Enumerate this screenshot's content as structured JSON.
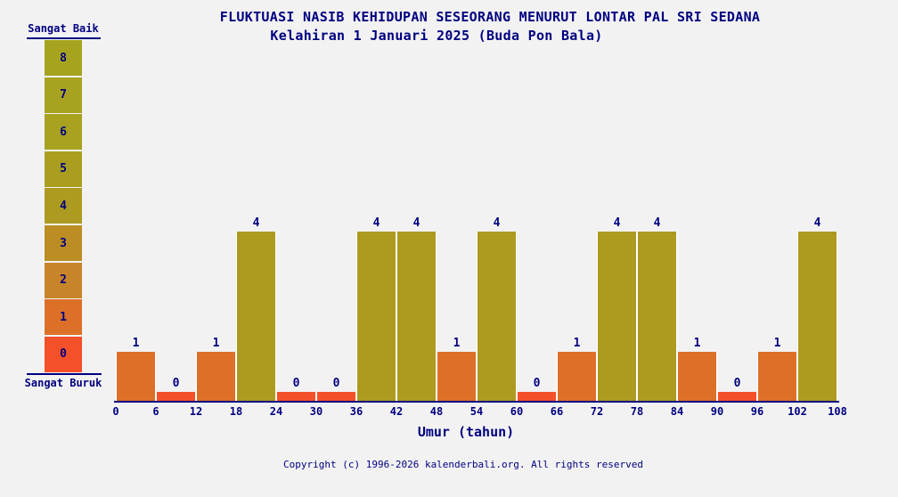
{
  "page": {
    "title": "FLUKTUASI NASIB KEHIDUPAN SESEORANG MENURUT LONTAR PAL SRI SEDANA",
    "subtitle": "Kelahiran 1 Januari 2025 (Buda Pon Bala)",
    "copyright": "Copyright (c) 1996-2026 kalenderbali.org. All rights reserved",
    "background_color": "#f2f2f2",
    "text_color": "#000080"
  },
  "legend": {
    "top_label": "Sangat Baik",
    "bottom_label": "Sangat Buruk",
    "levels": [
      8,
      7,
      6,
      5,
      4,
      3,
      2,
      1,
      0
    ],
    "colors": {
      "8": "#a6a41f",
      "7": "#a7a320",
      "6": "#a8a220",
      "5": "#a99e20",
      "4": "#ad9a20",
      "3": "#bb8d23",
      "2": "#c88428",
      "1": "#dd7028",
      "0": "#f4502a"
    }
  },
  "chart_data": {
    "type": "bar",
    "title": "FLUKTUASI NASIB KEHIDUPAN SESEORANG MENURUT LONTAR PAL SRI SEDANA",
    "subtitle": "Kelahiran 1 Januari 2025 (Buda Pon Bala)",
    "xlabel": "Umur (tahun)",
    "ylabel": "",
    "ylim": [
      0,
      8
    ],
    "scale_meaning": {
      "0": "Sangat Buruk",
      "8": "Sangat Baik"
    },
    "x_ticks": [
      0,
      6,
      12,
      18,
      24,
      30,
      36,
      42,
      48,
      54,
      60,
      66,
      72,
      78,
      84,
      90,
      96,
      102,
      108
    ],
    "bin_width_years": 6,
    "bin_starts": [
      0,
      6,
      12,
      18,
      24,
      30,
      36,
      42,
      48,
      54,
      60,
      66,
      72,
      78,
      84,
      90,
      96,
      102
    ],
    "values": [
      1,
      0,
      1,
      4,
      0,
      0,
      4,
      4,
      1,
      4,
      0,
      1,
      4,
      4,
      1,
      0,
      1,
      4
    ],
    "bar_colors_follow_legend_value": true,
    "grid": false,
    "legend_position": "left"
  }
}
